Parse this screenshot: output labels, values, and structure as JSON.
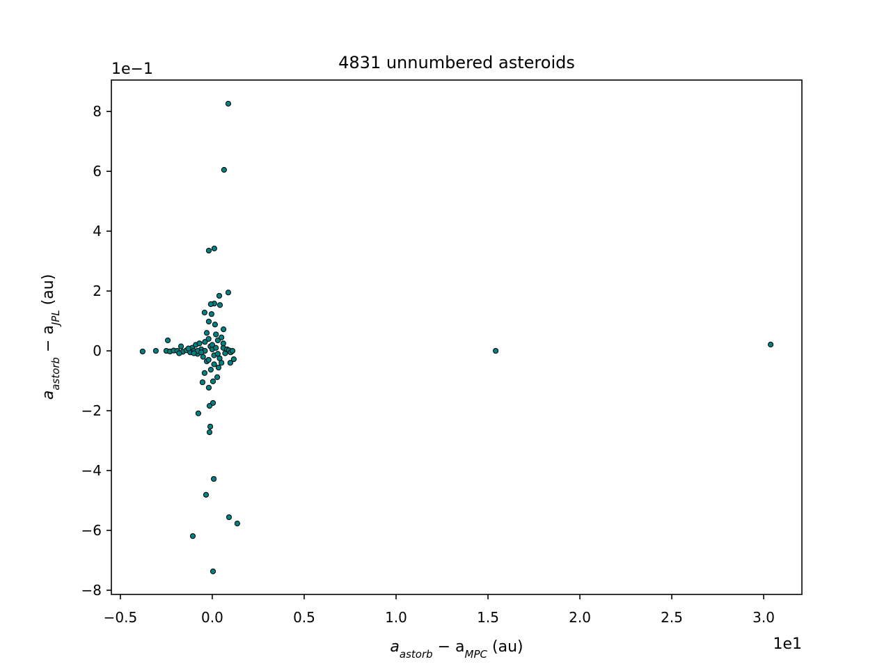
{
  "chart_data": {
    "type": "scatter",
    "title": "4831 unnumbered asteroids",
    "xlabel": [
      "a",
      "astorb",
      " − a",
      "MPC",
      " (au)"
    ],
    "ylabel": [
      "a",
      "astorb",
      " − a",
      "JPL",
      " (au)"
    ],
    "x_offset_label": "1e1",
    "y_offset_label": "1e−1",
    "xlim": [
      -0.549,
      3.208
    ],
    "ylim": [
      -8.14,
      9.05
    ],
    "xticks": [
      {
        "value": -0.5,
        "label": "−0.5"
      },
      {
        "value": 0,
        "label": "0.0"
      },
      0.5,
      {
        "value": 1,
        "label": "1.0"
      },
      1.5,
      {
        "value": 2,
        "label": "2.0"
      },
      2.5,
      {
        "value": 3,
        "label": "3.0"
      }
    ],
    "yticks": [
      {
        "value": -8,
        "label": "−8"
      },
      {
        "value": -6,
        "label": "−6"
      },
      {
        "value": -4,
        "label": "−4"
      },
      {
        "value": -2,
        "label": "−2"
      },
      0,
      2,
      4,
      6,
      8
    ],
    "color": "#008080",
    "edgecolor": "#000000",
    "x": [
      0.087,
      0.064,
      -0.019,
      0.011,
      0.087,
      0.038,
      0.042,
      0.011,
      -0.042,
      -0.008,
      -0.004,
      -0.019,
      0.015,
      0.061,
      -0.242,
      -0.379,
      -0.307,
      1.542,
      3.038,
      -0.25,
      -0.23,
      -0.21,
      -0.19,
      -0.17,
      -0.16,
      -0.14,
      -0.12,
      -0.11,
      -0.1,
      -0.09,
      -0.08,
      -0.07,
      -0.06,
      -0.05,
      -0.04,
      -0.03,
      -0.02,
      -0.01,
      0.0,
      0.01,
      0.02,
      0.03,
      0.04,
      0.05,
      0.06,
      0.07,
      0.08,
      0.09,
      0.1,
      0.11,
      -0.18,
      -0.13,
      -0.08,
      -0.04,
      0.0,
      0.03,
      0.06,
      -0.06,
      -0.02,
      0.02,
      0.05,
      -0.1,
      0.01,
      -0.03,
      0.117,
      0.098,
      0.034,
      -0.008,
      -0.042,
      0.027,
      0.004,
      -0.053,
      -0.019,
      0.004,
      -0.015,
      -0.076,
      -0.011,
      -0.015,
      0.008,
      -0.034,
      0.091,
      0.136,
      -0.106,
      0.004
    ],
    "values": [
      8.26,
      6.05,
      3.35,
      3.42,
      1.95,
      1.84,
      1.53,
      1.58,
      1.28,
      1.56,
      1.23,
      0.98,
      0.88,
      0.72,
      0.35,
      -0.02,
      0.0,
      0.0,
      0.21,
      0.0,
      -0.02,
      0.01,
      0.0,
      0.15,
      -0.03,
      0.02,
      -0.05,
      0.1,
      0.0,
      0.2,
      -0.1,
      0.25,
      0.05,
      -0.2,
      0.3,
      -0.35,
      0.4,
      0.15,
      0.05,
      -0.15,
      0.55,
      0.35,
      -0.25,
      0.45,
      0.1,
      -0.08,
      0.05,
      0.02,
      -0.05,
      0.0,
      -0.08,
      0.08,
      0.0,
      0.0,
      0.2,
      -0.1,
      0.25,
      -0.05,
      -0.3,
      0.1,
      -0.4,
      -0.08,
      -0.45,
      0.6,
      -0.28,
      -0.4,
      -0.56,
      -0.63,
      -0.74,
      -0.88,
      -1.02,
      -1.05,
      -1.23,
      -1.74,
      -1.84,
      -2.09,
      -2.53,
      -2.72,
      -4.28,
      -4.81,
      -5.56,
      -5.77,
      -6.19,
      -7.37
    ]
  }
}
